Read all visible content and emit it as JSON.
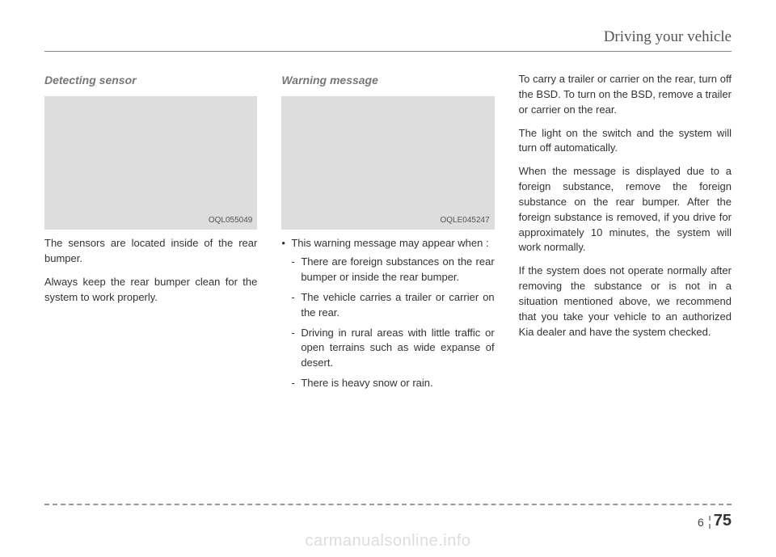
{
  "header": {
    "title": "Driving your vehicle"
  },
  "col1": {
    "subhead": "Detecting sensor",
    "imgcode": "OQL055049",
    "p1": "The sensors are located inside of the rear bumper.",
    "p2": "Always keep the rear bumper clean for the system to work properly."
  },
  "col2": {
    "subhead": "Warning message",
    "imgcode": "OQLE045247",
    "bullet1": "This warning message may appear when :",
    "d1": "There are foreign substances on the rear bumper or inside the rear bumper.",
    "d2": "The vehicle carries a trailer or  carrier on the rear.",
    "d3": "Driving in rural areas with little traffic or open terrains such as wide expanse of desert.",
    "d4": "There is heavy snow or rain."
  },
  "col3": {
    "p1": "To carry a trailer or carrier on the rear, turn off the BSD. To turn on the BSD, remove a trailer or carrier on the rear.",
    "p2": "The light on the switch and the system will turn off automatically.",
    "p3": "When the message is displayed due to a foreign substance, remove the foreign substance on the rear bumper. After the foreign substance is removed, if you drive for approximately 10 minutes, the system will work normally.",
    "p4": "If the system does not operate normally after removing the substance or is not in a situation mentioned above, we recommend that you take your vehicle to an authorized Kia dealer and have the system checked."
  },
  "footer": {
    "chapter": "6",
    "page": "75"
  },
  "watermark": "carmanualsonline.info"
}
